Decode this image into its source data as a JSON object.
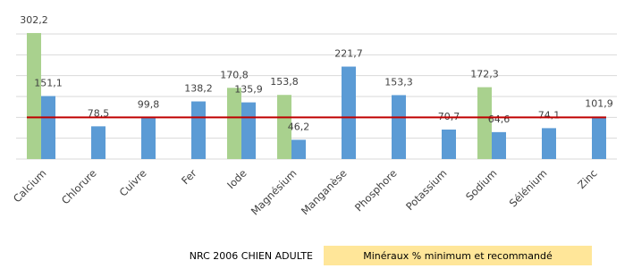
{
  "chart_data": {
    "type": "bar",
    "categories": [
      "Calcium",
      "Chlorure",
      "Cuivre",
      "Fer",
      "Iode",
      "Magnésium",
      "Manganèse",
      "Phosphore",
      "Potassium",
      "Sodium",
      "Sélénium",
      "Zinc"
    ],
    "series": [
      {
        "color": "#a9d18e",
        "values": [
          302.2,
          null,
          null,
          null,
          170.8,
          153.8,
          null,
          null,
          null,
          172.3,
          null,
          null
        ],
        "value_labels": [
          "302,2",
          null,
          null,
          null,
          "170,8",
          "153,8",
          null,
          null,
          null,
          "172,3",
          null,
          null
        ]
      },
      {
        "color": "#5b9bd5",
        "values": [
          151.1,
          78.5,
          99.8,
          138.2,
          135.9,
          46.2,
          221.7,
          153.3,
          70.7,
          64.6,
          74.1,
          101.9
        ],
        "value_labels": [
          "151,1",
          "78,5",
          "99,8",
          "138,2",
          "135,9",
          "46,2",
          "221,7",
          "153,3",
          "70,7",
          "64,6",
          "74,1",
          "101,9"
        ]
      }
    ],
    "ylim": [
      0,
      300
    ],
    "yticks": [
      0,
      50,
      100,
      150,
      200,
      250,
      300
    ],
    "grid": true,
    "show_tick_labels": false,
    "reference_line": {
      "value": 100,
      "color": "#c00000"
    },
    "footer": {
      "source": "NRC 2006 CHIEN ADULTE",
      "caption": "Minéraux % minimum et recommandé"
    }
  }
}
